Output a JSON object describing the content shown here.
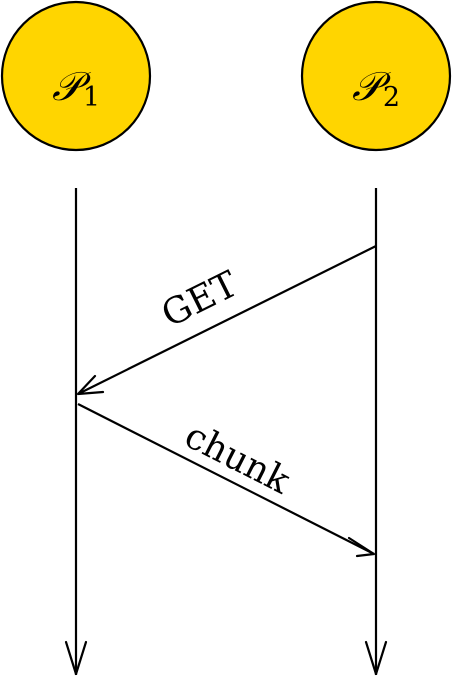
{
  "colors": {
    "node_fill": "#FFD500",
    "stroke": "#000000",
    "background": "#FFFFFF"
  },
  "participants": [
    {
      "symbol": "𝒫",
      "subscript": "1"
    },
    {
      "symbol": "𝒫",
      "subscript": "2"
    }
  ],
  "messages": [
    {
      "label": "GET",
      "from": "participant_2",
      "to": "participant_1"
    },
    {
      "label": "chunk",
      "from": "participant_1",
      "to": "participant_2"
    }
  ]
}
